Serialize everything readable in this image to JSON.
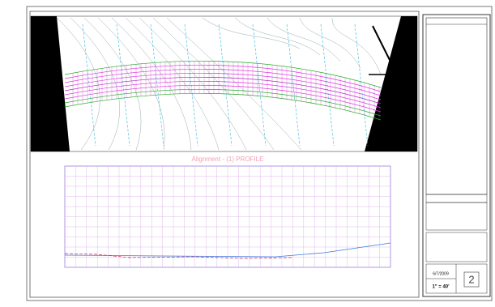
{
  "profile": {
    "title": "Alignment - (1) PROFILE"
  },
  "title_block": {
    "sheet_number": "2",
    "scale": "1\" = 40'",
    "date": "6/7/2009"
  }
}
